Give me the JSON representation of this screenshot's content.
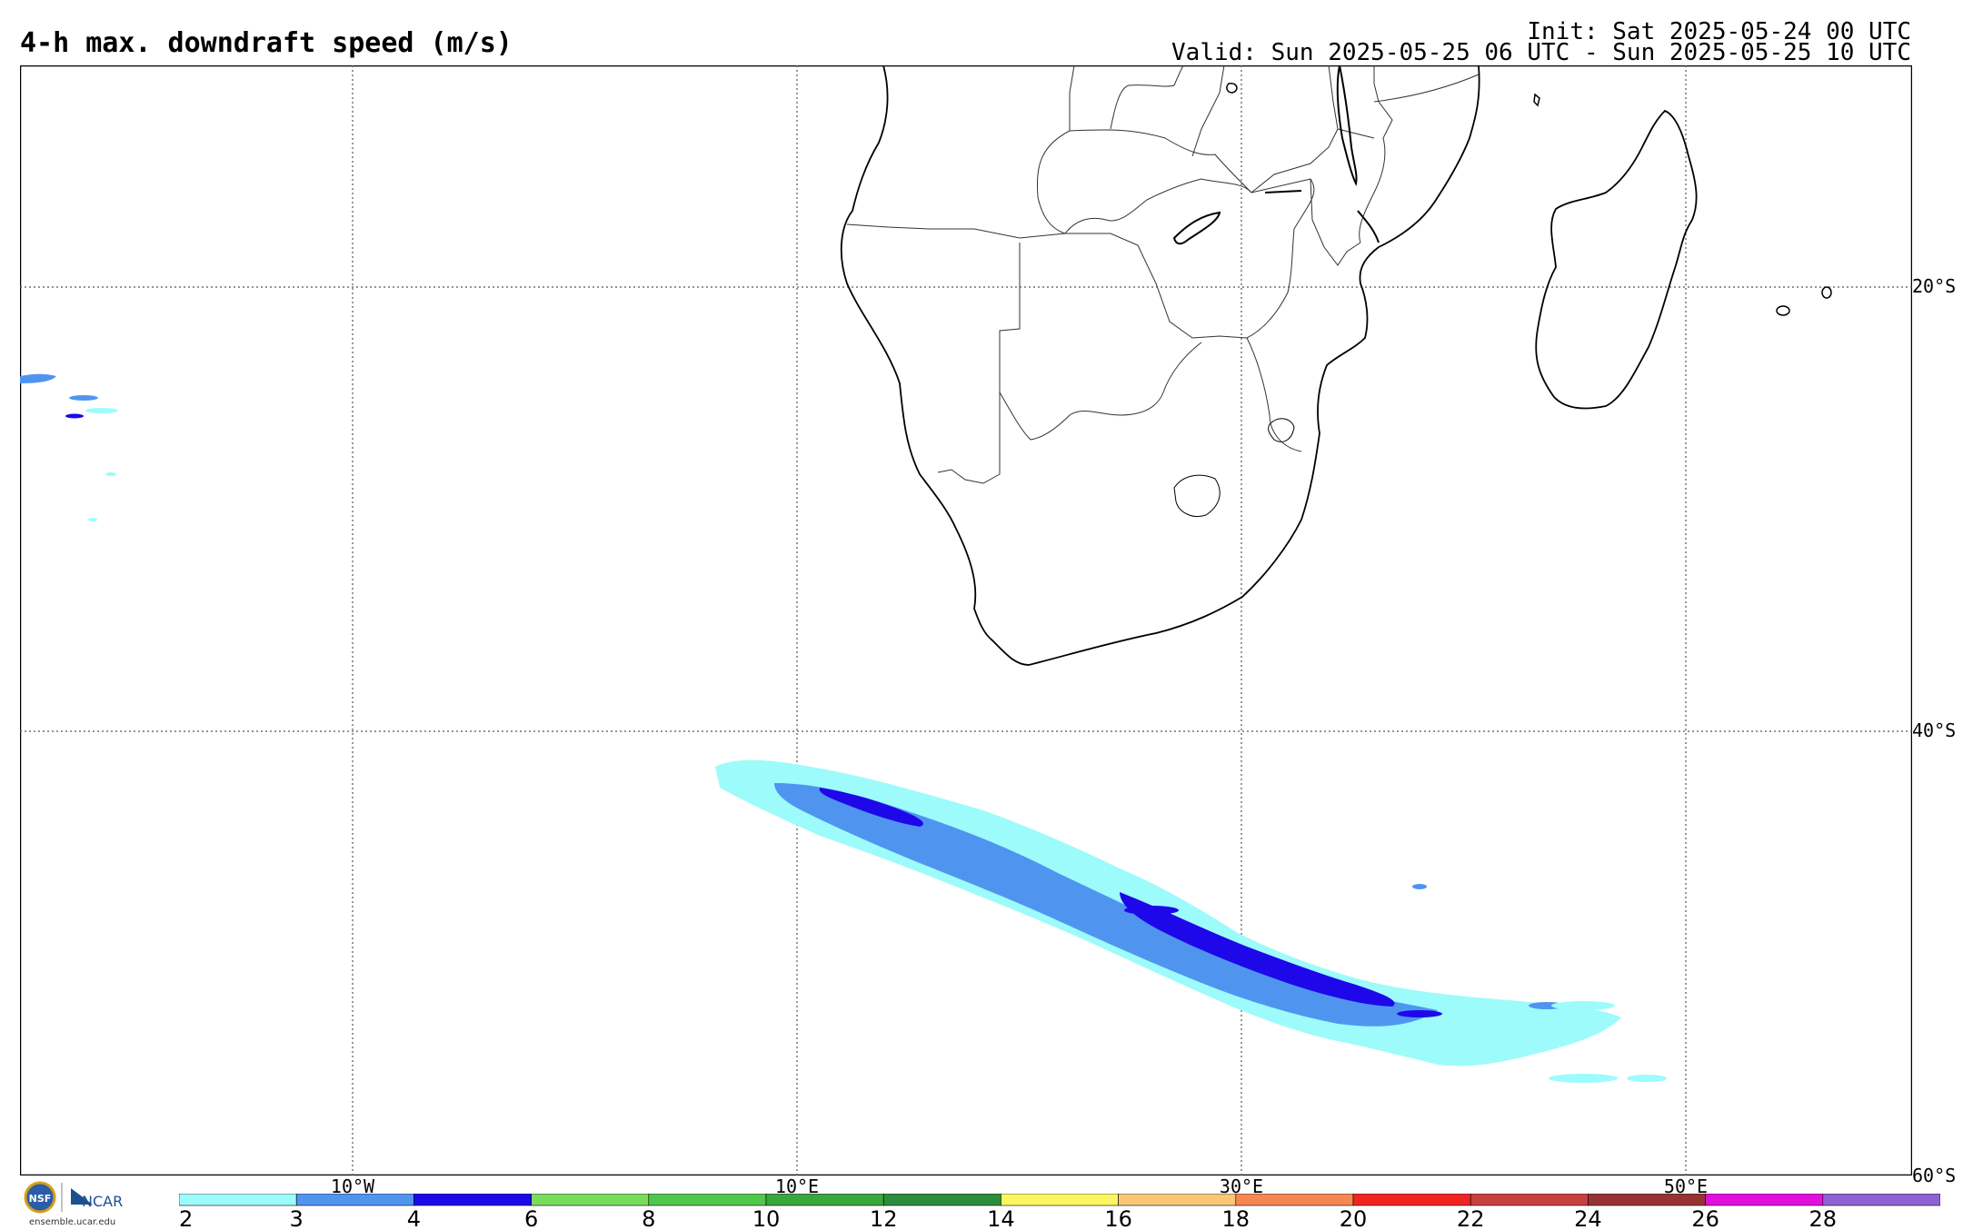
{
  "header": {
    "title": "4-h max. downdraft speed (m/s)",
    "init": "Init: Sat 2025-05-24 00 UTC",
    "valid": "Valid: Sun 2025-05-25 06 UTC - Sun 2025-05-25 10 UTC"
  },
  "axes": {
    "lat_labels": [
      "20°S",
      "40°S",
      "60°S"
    ],
    "lon_labels": [
      "10°W",
      "10°E",
      "30°E",
      "50°E"
    ]
  },
  "logo": {
    "nsf": "NSF",
    "ncar": "NCAR",
    "site": "ensemble.ucar.edu"
  },
  "colorbar": {
    "ticks": [
      "2",
      "3",
      "4",
      "6",
      "8",
      "10",
      "12",
      "14",
      "16",
      "18",
      "20",
      "22",
      "24",
      "26",
      "28"
    ],
    "colors": [
      "#9dfbfb",
      "#4f95f0",
      "#1e08ea",
      "#79dc5c",
      "#51c64a",
      "#3aa63e",
      "#2a8d3c",
      "#fbf65f",
      "#fbc675",
      "#f78652",
      "#f02523",
      "#c54140",
      "#983333",
      "#e30fdc",
      "#8e63d1"
    ]
  }
}
